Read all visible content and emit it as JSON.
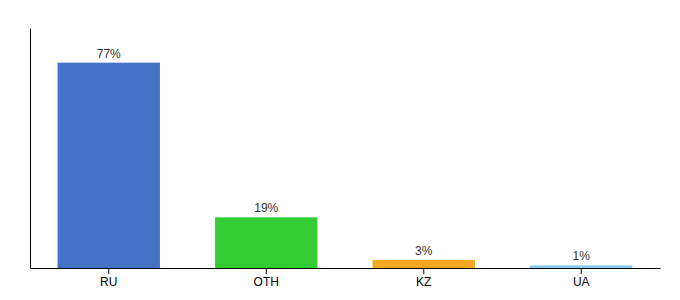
{
  "chart_data": {
    "type": "bar",
    "categories": [
      "RU",
      "OTH",
      "KZ",
      "UA"
    ],
    "values": [
      77,
      19,
      3,
      1
    ],
    "value_labels": [
      "77%",
      "19%",
      "3%",
      "1%"
    ],
    "colors": [
      "#4472c4",
      "#33cc33",
      "#f5a623",
      "#87ceeb"
    ],
    "ylim": [
      0,
      90
    ],
    "data_labels": true,
    "tick_labels": "x",
    "grid": false
  }
}
